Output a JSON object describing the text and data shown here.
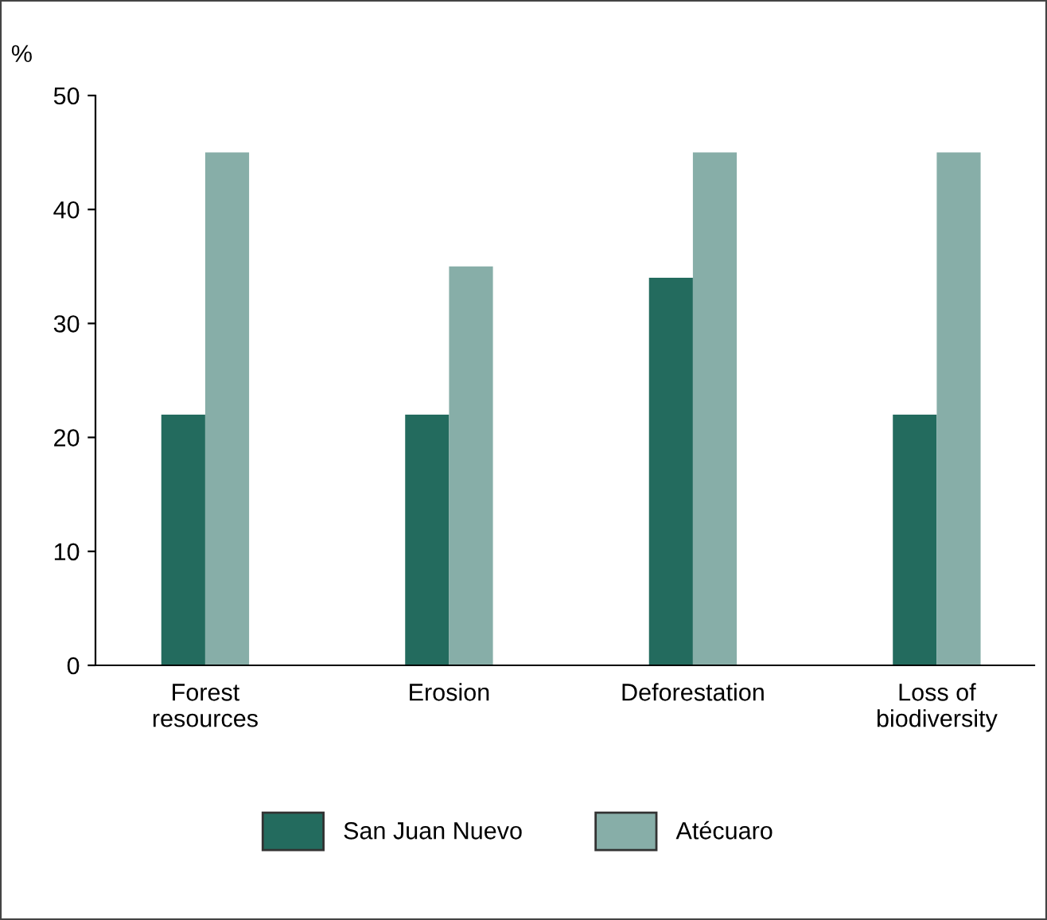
{
  "chart_data": {
    "type": "bar",
    "ylabel": "%",
    "categories": [
      "Forest\nresources",
      "Erosion",
      "Deforestation",
      "Loss of\nbiodiversity"
    ],
    "series": [
      {
        "name": "San Juan Nuevo",
        "color": "#236b5e",
        "values": [
          22,
          22,
          34,
          22
        ]
      },
      {
        "name": "Atécuaro",
        "color": "#87aea8",
        "values": [
          45,
          35,
          45,
          45
        ]
      }
    ],
    "ylim": [
      0,
      50
    ],
    "yticks": [
      0,
      10,
      20,
      30,
      40,
      50
    ],
    "grid": false,
    "legend": "bottom"
  }
}
